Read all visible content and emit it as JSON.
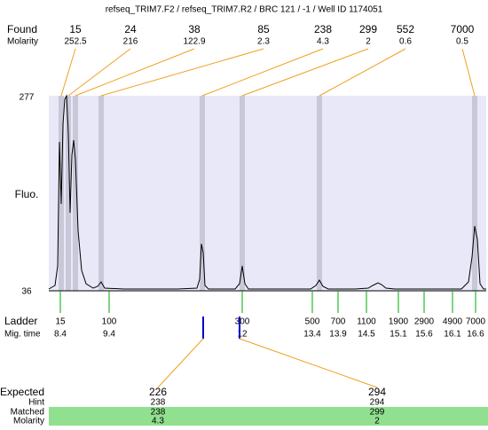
{
  "header": {
    "title": "refseq_TRIM7.F2 / refseq_TRIM7.R2 / BRC 121 / -1 / Well ID 1174051"
  },
  "found": {
    "label": "Found",
    "molarity_label": "Molarity",
    "peaks": [
      {
        "size": 15,
        "molarity": 252.5
      },
      {
        "size": 24,
        "molarity": 216
      },
      {
        "size": 38,
        "molarity": 122.9
      },
      {
        "size": 85,
        "molarity": 2.3
      },
      {
        "size": 238,
        "molarity": 4.3
      },
      {
        "size": 299,
        "molarity": 2
      },
      {
        "size": 552,
        "molarity": 0.6
      },
      {
        "size": 7000,
        "molarity": 0.5
      }
    ]
  },
  "axis": {
    "y_label": "Fluo.",
    "y_top": 277,
    "y_bottom": 36
  },
  "ladder": {
    "label": "Ladder",
    "time_label": "Mig. time",
    "bands": [
      {
        "size": 15,
        "time": 8.4
      },
      {
        "size": 100,
        "time": 9.4
      },
      {
        "size": 300,
        "time": 12
      },
      {
        "size": 500,
        "time": 13.4
      },
      {
        "size": 700,
        "time": 13.9
      },
      {
        "size": 1100,
        "time": 14.5
      },
      {
        "size": 1900,
        "time": 15.1
      },
      {
        "size": 2900,
        "time": 15.6
      },
      {
        "size": 4900,
        "time": 16.1
      },
      {
        "size": 7000,
        "time": 16.6
      }
    ]
  },
  "expected": {
    "label": "Expected",
    "hint_label": "Hint",
    "matched_label": "Matched",
    "molarity_label": "Molarity",
    "columns": [
      {
        "expected": 226,
        "hint": 238,
        "matched": 238,
        "molarity": 4.3
      },
      {
        "expected": 294,
        "hint": 294,
        "matched": 299,
        "molarity": 2
      }
    ]
  }
}
